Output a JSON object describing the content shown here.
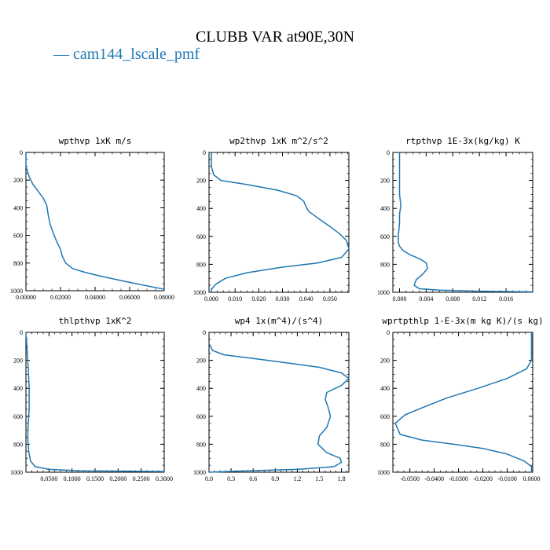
{
  "title": "CLUBB VAR at90E,30N",
  "legend": {
    "label": "— cam144_lscale_pmf",
    "color": "#1f77b4"
  },
  "chart_data": [
    {
      "type": "line",
      "title": "wpthvp   1xK  m/s",
      "xlim": [
        0,
        0.08
      ],
      "ylim": [
        1000,
        0
      ],
      "xticks": [
        "0.00000",
        "0.02000",
        "0.04000",
        "0.06000",
        "0.08000"
      ],
      "yticks": [
        "0",
        "200",
        "400",
        "600",
        "800",
        "1000"
      ],
      "series": [
        {
          "x": [
            0,
            0,
            0.002,
            0.004,
            0.007,
            0.01,
            0.012,
            0.013,
            0.014,
            0.016,
            0.018,
            0.02,
            0.021,
            0.023,
            0.027,
            0.035,
            0.045,
            0.06,
            0.08
          ],
          "y": [
            0,
            100,
            180,
            230,
            280,
            330,
            380,
            460,
            520,
            590,
            650,
            700,
            750,
            800,
            840,
            870,
            900,
            940,
            990
          ]
        }
      ]
    },
    {
      "type": "line",
      "title": "wp2thvp   1xK  m^2/s^2",
      "xlim": [
        -0.001,
        0.058
      ],
      "ylim": [
        1000,
        0
      ],
      "xticks": [
        "0.000",
        "0.010",
        "0.020",
        "0.030",
        "0.040",
        "0.050"
      ],
      "yticks": [
        "0",
        "200",
        "400",
        "600",
        "800",
        "1000"
      ],
      "series": [
        {
          "x": [
            0,
            0,
            0.001,
            0.004,
            0.015,
            0.028,
            0.036,
            0.039,
            0.04,
            0.041,
            0.045,
            0.05,
            0.054,
            0.057,
            0.058,
            0.055,
            0.045,
            0.03,
            0.015,
            0.006,
            0.002,
            0,
            0
          ],
          "y": [
            0,
            100,
            160,
            200,
            230,
            270,
            310,
            350,
            390,
            420,
            470,
            530,
            580,
            630,
            690,
            750,
            790,
            820,
            860,
            900,
            940,
            980,
            1000
          ]
        }
      ]
    },
    {
      "type": "line",
      "title": "rtpthvp   1E-3x(kg/kg) K",
      "xlim": [
        -0.001,
        0.02
      ],
      "ylim": [
        1000,
        0
      ],
      "xticks": [
        "0.000",
        "0.004",
        "0.008",
        "0.012",
        "0.016"
      ],
      "yticks": [
        "0",
        "200",
        "400",
        "600",
        "800",
        "1000"
      ],
      "series": [
        {
          "x": [
            0,
            0,
            0,
            0.0002,
            0,
            0,
            -0.0001,
            -0.0002,
            -0.0002,
            0,
            0.0005,
            0.0015,
            0.003,
            0.004,
            0.0042,
            0.0035,
            0.0025,
            0.0022,
            0.003,
            0.006,
            0.012,
            0.02
          ],
          "y": [
            0,
            200,
            300,
            380,
            440,
            500,
            560,
            600,
            640,
            670,
            700,
            730,
            760,
            790,
            830,
            870,
            910,
            950,
            975,
            985,
            992,
            997
          ]
        }
      ]
    },
    {
      "type": "line",
      "title": "thlpthvp   1xK^2",
      "xlim": [
        0,
        0.3
      ],
      "ylim": [
        1000,
        0
      ],
      "xticks": [
        "0.0500",
        "0.1000",
        "0.1500",
        "0.2000",
        "0.2500",
        "0.3000"
      ],
      "xtick_values": [
        0.05,
        0.1,
        0.15,
        0.2,
        0.25,
        0.3
      ],
      "yticks": [
        "0",
        "200",
        "400",
        "600",
        "800",
        "1000"
      ],
      "series": [
        {
          "x": [
            0,
            0.002,
            0.005,
            0.007,
            0.007,
            0.005,
            0.004,
            0.006,
            0.01,
            0.02,
            0.05,
            0.12,
            0.3
          ],
          "y": [
            0,
            100,
            250,
            400,
            550,
            650,
            750,
            850,
            920,
            960,
            980,
            990,
            995
          ]
        }
      ]
    },
    {
      "type": "line",
      "title": "wp4   1x(m^4)/(s^4)",
      "xlim": [
        0,
        1.9
      ],
      "ylim": [
        1000,
        0
      ],
      "xticks": [
        "0.0",
        "0.3",
        "0.6",
        "0.9",
        "1.2",
        "1.5",
        "1.8"
      ],
      "yticks": [
        "0",
        "200",
        "400",
        "600",
        "800",
        "1000"
      ],
      "series": [
        {
          "x": [
            0,
            0.05,
            0.2,
            0.8,
            1.5,
            1.8,
            1.9,
            1.8,
            1.6,
            1.58,
            1.62,
            1.65,
            1.6,
            1.5,
            1.48,
            1.6,
            1.78,
            1.8,
            1.7,
            1.2,
            0.5,
            0
          ],
          "y": [
            80,
            130,
            160,
            200,
            250,
            290,
            330,
            380,
            430,
            480,
            540,
            600,
            680,
            740,
            800,
            860,
            900,
            930,
            960,
            980,
            990,
            1000
          ]
        }
      ]
    },
    {
      "type": "line",
      "title": "wprtpthlp   1-E-3x(m kg K)/(s kg)",
      "xlim": [
        -0.057,
        0.0005
      ],
      "ylim": [
        1000,
        0
      ],
      "xticks": [
        "-0.0500",
        "-0.0400",
        "-0.0300",
        "-0.0200",
        "-0.0100",
        "0.0000"
      ],
      "yticks": [
        "0",
        "200",
        "400",
        "600",
        "800",
        "1000"
      ],
      "series": [
        {
          "x": [
            0,
            0,
            0,
            -0.002,
            -0.01,
            -0.022,
            -0.035,
            -0.045,
            -0.052,
            -0.056,
            -0.054,
            -0.045,
            -0.032,
            -0.02,
            -0.01,
            -0.003,
            0,
            0
          ],
          "y": [
            0,
            100,
            200,
            260,
            330,
            400,
            470,
            540,
            590,
            650,
            730,
            770,
            800,
            830,
            870,
            920,
            960,
            1000
          ]
        }
      ]
    }
  ]
}
